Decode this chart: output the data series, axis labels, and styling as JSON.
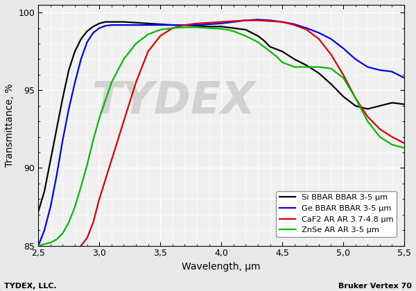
{
  "xlabel": "Wavelength, μm",
  "ylabel": "Transmittance, %",
  "xlim": [
    2.5,
    5.5
  ],
  "ylim": [
    85.0,
    100.5
  ],
  "yticks": [
    85,
    90,
    95,
    100
  ],
  "xticks": [
    2.5,
    3.0,
    3.5,
    4.0,
    4.5,
    5.0,
    5.5
  ],
  "xtick_labels": [
    "2,5",
    "3,0",
    "3,5",
    "4,0",
    "4,5",
    "5,0",
    "5,5"
  ],
  "plot_bg": "#f0f0f0",
  "fig_bg": "#e8e8e8",
  "grid_color": "#ffffff",
  "footer_left": "TYDEX, LLC.",
  "footer_right": "Bruker Vertex 70",
  "series": [
    {
      "label": "Si BBAR BBAR 3-5 μm",
      "color": "#000000",
      "linewidth": 1.6,
      "x": [
        2.5,
        2.55,
        2.6,
        2.65,
        2.7,
        2.75,
        2.8,
        2.85,
        2.9,
        2.95,
        3.0,
        3.05,
        3.1,
        3.2,
        3.3,
        3.4,
        3.5,
        3.6,
        3.7,
        3.8,
        3.9,
        4.0,
        4.1,
        4.2,
        4.3,
        4.35,
        4.4,
        4.5,
        4.6,
        4.7,
        4.8,
        4.9,
        5.0,
        5.1,
        5.2,
        5.3,
        5.4,
        5.5
      ],
      "y": [
        87.2,
        88.5,
        90.5,
        92.5,
        94.5,
        96.3,
        97.5,
        98.3,
        98.8,
        99.1,
        99.3,
        99.4,
        99.4,
        99.4,
        99.35,
        99.3,
        99.25,
        99.2,
        99.2,
        99.15,
        99.1,
        99.1,
        99.0,
        98.9,
        98.5,
        98.2,
        97.8,
        97.5,
        97.0,
        96.6,
        96.1,
        95.4,
        94.6,
        94.0,
        93.8,
        94.0,
        94.2,
        94.1
      ]
    },
    {
      "label": "Ge BBAR BBAR 3-5 μm",
      "color": "#0000ee",
      "linewidth": 1.6,
      "x": [
        2.5,
        2.55,
        2.6,
        2.65,
        2.7,
        2.75,
        2.8,
        2.85,
        2.9,
        2.95,
        3.0,
        3.05,
        3.1,
        3.2,
        3.3,
        3.4,
        3.5,
        3.6,
        3.7,
        3.8,
        3.9,
        4.0,
        4.1,
        4.2,
        4.3,
        4.4,
        4.5,
        4.6,
        4.7,
        4.8,
        4.9,
        5.0,
        5.1,
        5.2,
        5.3,
        5.4,
        5.5
      ],
      "y": [
        85.0,
        86.0,
        87.5,
        89.5,
        91.8,
        93.8,
        95.5,
        97.0,
        98.1,
        98.7,
        99.0,
        99.15,
        99.2,
        99.2,
        99.2,
        99.2,
        99.2,
        99.2,
        99.2,
        99.2,
        99.25,
        99.3,
        99.4,
        99.5,
        99.55,
        99.5,
        99.4,
        99.25,
        99.0,
        98.7,
        98.3,
        97.7,
        97.0,
        96.5,
        96.3,
        96.2,
        95.8
      ]
    },
    {
      "label": "CaF2 AR AR 3.7-4.8 μm",
      "color": "#dd0000",
      "linewidth": 1.6,
      "x": [
        2.85,
        2.9,
        2.95,
        3.0,
        3.1,
        3.2,
        3.3,
        3.4,
        3.5,
        3.6,
        3.7,
        3.8,
        3.9,
        4.0,
        4.1,
        4.2,
        4.3,
        4.4,
        4.5,
        4.6,
        4.7,
        4.8,
        4.9,
        5.0,
        5.1,
        5.2,
        5.3,
        5.4,
        5.5
      ],
      "y": [
        85.0,
        85.5,
        86.5,
        88.0,
        90.5,
        93.0,
        95.5,
        97.5,
        98.5,
        99.0,
        99.2,
        99.3,
        99.35,
        99.4,
        99.45,
        99.5,
        99.5,
        99.45,
        99.4,
        99.2,
        98.9,
        98.3,
        97.3,
        96.0,
        94.5,
        93.3,
        92.5,
        92.0,
        91.6
      ]
    },
    {
      "label": "ZnSe AR AR 3-5 μm",
      "color": "#00bb00",
      "linewidth": 1.6,
      "x": [
        2.5,
        2.55,
        2.6,
        2.65,
        2.7,
        2.75,
        2.8,
        2.85,
        2.9,
        2.95,
        3.0,
        3.1,
        3.2,
        3.3,
        3.4,
        3.5,
        3.6,
        3.7,
        3.8,
        3.9,
        4.0,
        4.05,
        4.1,
        4.2,
        4.3,
        4.4,
        4.45,
        4.5,
        4.6,
        4.7,
        4.8,
        4.9,
        5.0,
        5.1,
        5.2,
        5.3,
        5.4,
        5.5
      ],
      "y": [
        85.0,
        85.1,
        85.2,
        85.4,
        85.8,
        86.5,
        87.5,
        88.8,
        90.2,
        91.8,
        93.2,
        95.5,
        97.0,
        98.0,
        98.6,
        98.9,
        99.0,
        99.05,
        99.05,
        99.0,
        98.95,
        98.9,
        98.8,
        98.5,
        98.1,
        97.5,
        97.2,
        96.8,
        96.5,
        96.5,
        96.5,
        96.4,
        95.8,
        94.5,
        93.0,
        92.0,
        91.5,
        91.3
      ]
    }
  ]
}
